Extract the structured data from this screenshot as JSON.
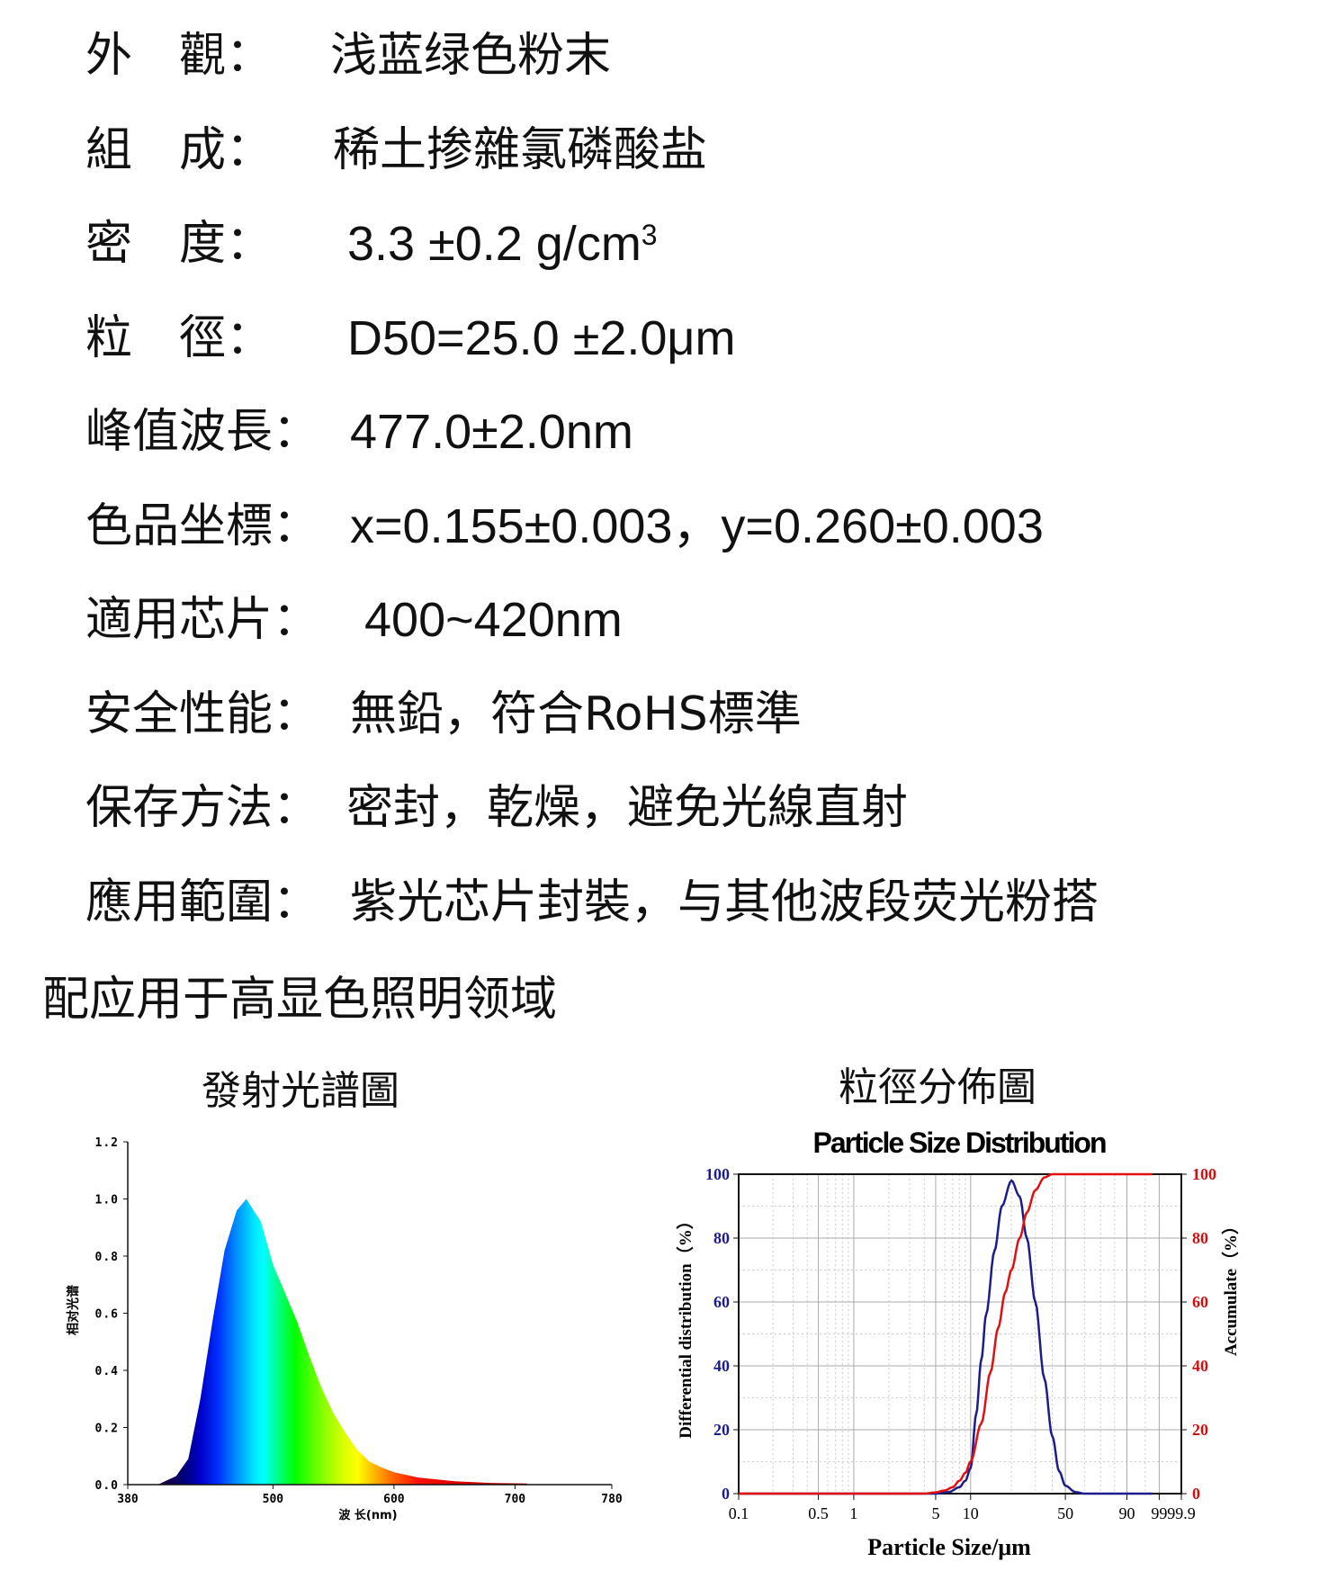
{
  "specs": [
    {
      "label": "外　觀：",
      "value": "浅蓝绿色粉末"
    },
    {
      "label": "組　成：",
      "value": "稀土掺雜氯磷酸盐"
    },
    {
      "label": "密　度：",
      "value": "3.3 ±0.2 g/cm",
      "sup": "3"
    },
    {
      "label": "粒　徑：",
      "value": "D50=25.0 ±2.0μm"
    },
    {
      "label": "峰值波長：",
      "value": "477.0±2.0nm"
    },
    {
      "label": "色品坐標：",
      "value": "x=0.155±0.003，y=0.260±0.003"
    },
    {
      "label": "適用芯片：",
      "value": "400~420nm"
    },
    {
      "label": "安全性能：",
      "value": "無鉛，符合RoHS標準"
    },
    {
      "label": "保存方法：",
      "value": "密封，乾燥，避免光線直射"
    },
    {
      "label": "應用範圍：",
      "value": "紫光芯片封裝，与其他波段荧光粉搭"
    }
  ],
  "wrap_line": "配应用于高显色照明领域",
  "chart_data": [
    {
      "type": "area",
      "heading": "發射光譜圖",
      "xlabel": "波 长(nm)",
      "ylabel": "相对光谱",
      "xlim": [
        380,
        780
      ],
      "ylim": [
        0,
        1.2
      ],
      "xticks": [
        "380",
        "500",
        "600",
        "700",
        "780"
      ],
      "xtick_values": [
        380,
        500,
        600,
        700,
        780
      ],
      "yticks": [
        "0.0",
        "0.2",
        "0.4",
        "0.6",
        "0.8",
        "1.0",
        "1.2"
      ],
      "fill": "spectral gradient",
      "x": [
        405,
        410,
        420,
        430,
        440,
        450,
        460,
        470,
        478,
        490,
        500,
        510,
        520,
        530,
        540,
        550,
        560,
        570,
        580,
        590,
        600,
        620,
        650,
        680,
        710
      ],
      "y": [
        0,
        0.01,
        0.03,
        0.09,
        0.3,
        0.57,
        0.82,
        0.96,
        1.0,
        0.92,
        0.77,
        0.67,
        0.57,
        0.45,
        0.34,
        0.25,
        0.18,
        0.12,
        0.08,
        0.06,
        0.043,
        0.025,
        0.012,
        0.006,
        0.004
      ],
      "spectrum_colors": [
        [
          410,
          "#1a0040"
        ],
        [
          425,
          "#000070"
        ],
        [
          440,
          "#0000c8"
        ],
        [
          455,
          "#0030ff"
        ],
        [
          470,
          "#0090ff"
        ],
        [
          485,
          "#00e8ff"
        ],
        [
          492,
          "#00ffff"
        ],
        [
          505,
          "#00ff80"
        ],
        [
          518,
          "#00ff00"
        ],
        [
          540,
          "#80ff00"
        ],
        [
          560,
          "#e0ff00"
        ],
        [
          570,
          "#ffff00"
        ],
        [
          585,
          "#ffb000"
        ],
        [
          600,
          "#ff6000"
        ],
        [
          620,
          "#ff1000"
        ],
        [
          650,
          "#e00000"
        ],
        [
          710,
          "#b00000"
        ]
      ]
    },
    {
      "type": "line",
      "heading": "粒徑分佈圖",
      "title": "Particle Size Distribution",
      "xlabel": "Particle Size/μm",
      "ylabel_left": "Differential distribution（%）",
      "ylabel_right": "Accumulate（%）",
      "xscale": "log",
      "xticks": [
        "0.1",
        "0.5",
        "1",
        "5",
        "10",
        "50",
        "90",
        "99",
        "99.9"
      ],
      "xtick_values": [
        0.1,
        0.5,
        1,
        5,
        10,
        50,
        90,
        99,
        99.9
      ],
      "ylim": [
        0,
        100
      ],
      "yticks": [
        "0",
        "20",
        "40",
        "60",
        "80",
        "100"
      ],
      "grid": true,
      "series": [
        {
          "axis": "left",
          "color": "#1c1c8c",
          "x": [
            0.1,
            5,
            6.5,
            8,
            9,
            10,
            11,
            12,
            13,
            15,
            17,
            20,
            23,
            26,
            30,
            35,
            40,
            45,
            50,
            55,
            60,
            97
          ],
          "y": [
            0,
            0,
            0.5,
            2,
            4,
            8,
            25,
            42,
            56,
            76,
            90,
            98,
            93,
            80,
            60,
            36,
            18,
            7,
            2.5,
            0.5,
            0,
            0
          ]
        },
        {
          "axis": "right",
          "color": "#e01010",
          "x": [
            0.1,
            4,
            5,
            6,
            7,
            8,
            9,
            10,
            12,
            14,
            16,
            18,
            20,
            23,
            26,
            30,
            35,
            40,
            97
          ],
          "y": [
            0,
            0,
            0.4,
            1,
            2,
            4,
            6.5,
            10,
            22,
            38,
            52,
            63,
            70,
            80,
            88,
            95,
            99,
            100,
            100
          ]
        }
      ],
      "left_axis_color": "#1c1c8c",
      "right_axis_color": "#d01010"
    }
  ]
}
